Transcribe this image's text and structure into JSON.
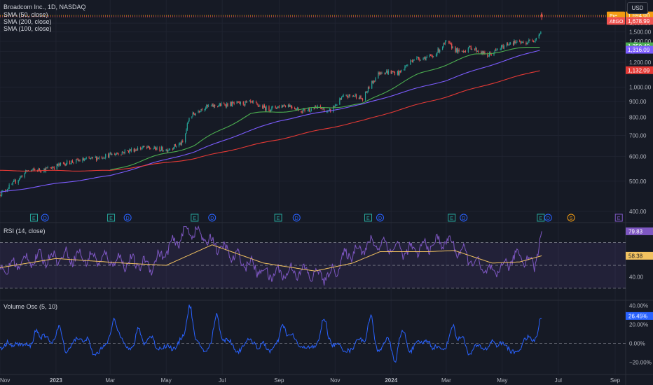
{
  "header": {
    "symbol": "Broadcom Inc., 1D, NASDAQ",
    "legend": [
      "SMA (50, close)",
      "SMA (200, close)",
      "SMA (100, close)"
    ],
    "currency": "USD"
  },
  "colors": {
    "background": "#161a25",
    "grid": "#1f2330",
    "text": "#b2b5be",
    "up": "#26a69a",
    "down": "#ef5350",
    "sma50": "#4caf50",
    "sma100": "#7c5cff",
    "sma200": "#e53935",
    "rsi": "#7e57c2",
    "rsi_ma": "#f2c260",
    "volume_osc": "#2962ff",
    "pre_badge": "#f39c12",
    "after_badge": "#ef5350"
  },
  "chart_data": [
    {
      "type": "candlestick",
      "panel": "price",
      "title": "Broadcom Inc., 1D, NASDAQ",
      "y_scale": "log",
      "ylim": [
        380,
        1850
      ],
      "y_ticks": [
        400,
        500,
        600,
        700,
        800,
        900,
        1000,
        1200,
        1300,
        1400,
        1500,
        1600
      ],
      "y_tick_labels": [
        "400.00",
        "500.00",
        "600.00",
        "700.00",
        "800.00",
        "900.00",
        "1,000.00",
        "1,200.00",
        "1,300.00",
        "1,400.00",
        "1,500.00",
        "1,600.00"
      ],
      "x_tick_labels": [
        "Nov",
        "2023",
        "Mar",
        "May",
        "Jul",
        "Sep",
        "Nov",
        "2024",
        "Mar",
        "May",
        "Jul",
        "Sep"
      ],
      "x_tick_dates": [
        "2022-11-01",
        "2023-01-01",
        "2023-03-01",
        "2023-05-01",
        "2023-07-01",
        "2023-09-01",
        "2023-11-01",
        "2024-01-01",
        "2024-03-01",
        "2024-05-01",
        "2024-07-01",
        "2024-09-01"
      ],
      "close_path": [
        {
          "date": "2022-11-01",
          "value": 455
        },
        {
          "date": "2022-11-15",
          "value": 490
        },
        {
          "date": "2022-12-01",
          "value": 540
        },
        {
          "date": "2022-12-20",
          "value": 545
        },
        {
          "date": "2023-01-15",
          "value": 575
        },
        {
          "date": "2023-02-10",
          "value": 590
        },
        {
          "date": "2023-03-10",
          "value": 615
        },
        {
          "date": "2023-04-05",
          "value": 640
        },
        {
          "date": "2023-05-01",
          "value": 630
        },
        {
          "date": "2023-05-20",
          "value": 665
        },
        {
          "date": "2023-05-26",
          "value": 800
        },
        {
          "date": "2023-06-10",
          "value": 860
        },
        {
          "date": "2023-07-05",
          "value": 880
        },
        {
          "date": "2023-08-01",
          "value": 890
        },
        {
          "date": "2023-08-20",
          "value": 850
        },
        {
          "date": "2023-09-10",
          "value": 880
        },
        {
          "date": "2023-09-25",
          "value": 840
        },
        {
          "date": "2023-10-15",
          "value": 860
        },
        {
          "date": "2023-10-25",
          "value": 830
        },
        {
          "date": "2023-11-10",
          "value": 930
        },
        {
          "date": "2023-11-25",
          "value": 940
        },
        {
          "date": "2023-12-01",
          "value": 910
        },
        {
          "date": "2023-12-08",
          "value": 1000
        },
        {
          "date": "2023-12-20",
          "value": 1120
        },
        {
          "date": "2024-01-10",
          "value": 1110
        },
        {
          "date": "2024-01-25",
          "value": 1230
        },
        {
          "date": "2024-02-15",
          "value": 1250
        },
        {
          "date": "2024-03-01",
          "value": 1390
        },
        {
          "date": "2024-03-15",
          "value": 1290
        },
        {
          "date": "2024-03-28",
          "value": 1340
        },
        {
          "date": "2024-04-15",
          "value": 1260
        },
        {
          "date": "2024-04-25",
          "value": 1310
        },
        {
          "date": "2024-05-10",
          "value": 1390
        },
        {
          "date": "2024-05-25",
          "value": 1380
        },
        {
          "date": "2024-06-05",
          "value": 1420
        },
        {
          "date": "2024-06-12",
          "value": 1500
        }
      ],
      "last_candle": {
        "date": "2024-06-13",
        "value": 1678.99,
        "high": 1735,
        "low": 1640
      },
      "sma": [
        {
          "name": "SMA (50, close)",
          "last": "1,350.40",
          "points": [
            {
              "date": "2023-03-01",
              "value": 540
            },
            {
              "date": "2023-06-01",
              "value": 650
            },
            {
              "date": "2023-08-01",
              "value": 820
            },
            {
              "date": "2023-10-01",
              "value": 850
            },
            {
              "date": "2023-12-01",
              "value": 880
            },
            {
              "date": "2024-02-01",
              "value": 1100
            },
            {
              "date": "2024-04-01",
              "value": 1270
            },
            {
              "date": "2024-06-12",
              "value": 1350
            }
          ]
        },
        {
          "name": "SMA (100, close)",
          "last": "1,316.09",
          "points": [
            {
              "date": "2022-11-01",
              "value": 460
            },
            {
              "date": "2023-03-01",
              "value": 520
            },
            {
              "date": "2023-06-01",
              "value": 620
            },
            {
              "date": "2023-09-01",
              "value": 780
            },
            {
              "date": "2023-12-01",
              "value": 880
            },
            {
              "date": "2024-03-01",
              "value": 1050
            },
            {
              "date": "2024-06-12",
              "value": 1316
            }
          ]
        },
        {
          "name": "SMA (200, close)",
          "last": "1,132.09",
          "points": [
            {
              "date": "2022-11-01",
              "value": 540
            },
            {
              "date": "2023-03-01",
              "value": 540
            },
            {
              "date": "2023-06-01",
              "value": 590
            },
            {
              "date": "2023-09-01",
              "value": 680
            },
            {
              "date": "2023-12-01",
              "value": 780
            },
            {
              "date": "2024-03-01",
              "value": 930
            },
            {
              "date": "2024-06-12",
              "value": 1132
            }
          ]
        }
      ],
      "price_labels": [
        {
          "tag": "Pre",
          "value": "1,694.00",
          "y_value": 1694
        },
        {
          "tag": "AftGO",
          "value": "1,678.99",
          "y_value": 1678.99
        }
      ],
      "events": [
        {
          "letter": "E",
          "date": "2022-12-08"
        },
        {
          "letter": "D",
          "date": "2022-12-20"
        },
        {
          "letter": "E",
          "date": "2023-03-02"
        },
        {
          "letter": "D",
          "date": "2023-03-20"
        },
        {
          "letter": "E",
          "date": "2023-06-01"
        },
        {
          "letter": "D",
          "date": "2023-06-20"
        },
        {
          "letter": "E",
          "date": "2023-08-31"
        },
        {
          "letter": "D",
          "date": "2023-09-20"
        },
        {
          "letter": "E",
          "date": "2023-12-07"
        },
        {
          "letter": "D",
          "date": "2023-12-20"
        },
        {
          "letter": "E",
          "date": "2024-03-07"
        },
        {
          "letter": "D",
          "date": "2024-03-20"
        },
        {
          "letter": "E",
          "date": "2024-06-12"
        },
        {
          "letter": "D",
          "date": "2024-06-20"
        },
        {
          "letter": "S",
          "date": "2024-07-15"
        },
        {
          "letter": "E",
          "date": "2024-09-05"
        }
      ]
    },
    {
      "type": "line",
      "panel": "rsi",
      "title": "RSI (14, close)",
      "ylim": [
        20,
        85
      ],
      "y_ticks": [
        40
      ],
      "y_tick_labels": [
        "40.00"
      ],
      "bands": [
        70,
        50,
        30
      ],
      "last_value": "79.83",
      "ma_last_value": "58.38",
      "anchors": [
        {
          "date": "2022-11-01",
          "value": 45
        },
        {
          "date": "2022-12-01",
          "value": 55
        },
        {
          "date": "2023-01-15",
          "value": 58
        },
        {
          "date": "2023-03-01",
          "value": 55
        },
        {
          "date": "2023-04-15",
          "value": 50
        },
        {
          "date": "2023-05-26",
          "value": 82
        },
        {
          "date": "2023-06-20",
          "value": 70
        },
        {
          "date": "2023-07-20",
          "value": 55
        },
        {
          "date": "2023-08-20",
          "value": 42
        },
        {
          "date": "2023-09-20",
          "value": 45
        },
        {
          "date": "2023-10-25",
          "value": 40
        },
        {
          "date": "2023-11-15",
          "value": 60
        },
        {
          "date": "2023-12-15",
          "value": 70
        },
        {
          "date": "2024-01-20",
          "value": 62
        },
        {
          "date": "2024-03-01",
          "value": 72
        },
        {
          "date": "2024-04-05",
          "value": 50
        },
        {
          "date": "2024-04-20",
          "value": 42
        },
        {
          "date": "2024-05-20",
          "value": 60
        },
        {
          "date": "2024-06-05",
          "value": 50
        },
        {
          "date": "2024-06-13",
          "value": 79.83
        }
      ],
      "ma_anchors": [
        {
          "date": "2022-11-01",
          "value": 48
        },
        {
          "date": "2023-01-01",
          "value": 56
        },
        {
          "date": "2023-03-15",
          "value": 52
        },
        {
          "date": "2023-05-01",
          "value": 50
        },
        {
          "date": "2023-06-20",
          "value": 68
        },
        {
          "date": "2023-08-15",
          "value": 52
        },
        {
          "date": "2023-10-10",
          "value": 45
        },
        {
          "date": "2023-11-20",
          "value": 52
        },
        {
          "date": "2023-12-20",
          "value": 62
        },
        {
          "date": "2024-02-10",
          "value": 62
        },
        {
          "date": "2024-03-10",
          "value": 63
        },
        {
          "date": "2024-04-20",
          "value": 52
        },
        {
          "date": "2024-05-20",
          "value": 53
        },
        {
          "date": "2024-06-13",
          "value": 58.38
        }
      ]
    },
    {
      "type": "line",
      "panel": "volume_osc",
      "title": "Volume Osc (5, 10)",
      "ylim": [
        -28,
        45
      ],
      "y_ticks": [
        40,
        20,
        0,
        -20
      ],
      "y_tick_labels": [
        "40.00%",
        "20.00%",
        "0.00%",
        "−20.00%"
      ],
      "zero_line": 0,
      "last_value": "26.45%",
      "spikes": [
        {
          "date": "2022-12-10",
          "value": 20
        },
        {
          "date": "2023-01-05",
          "value": 18
        },
        {
          "date": "2023-03-05",
          "value": 22
        },
        {
          "date": "2023-04-01",
          "value": 18
        },
        {
          "date": "2023-05-27",
          "value": 38
        },
        {
          "date": "2023-06-25",
          "value": 24
        },
        {
          "date": "2023-09-05",
          "value": 20
        },
        {
          "date": "2023-10-20",
          "value": 18
        },
        {
          "date": "2023-12-10",
          "value": 30
        },
        {
          "date": "2024-01-15",
          "value": 12
        },
        {
          "date": "2024-03-08",
          "value": 22
        },
        {
          "date": "2024-03-25",
          "value": -15
        },
        {
          "date": "2024-04-25",
          "value": -10
        },
        {
          "date": "2024-06-13",
          "value": 26.45
        }
      ],
      "dips": [
        {
          "date": "2022-11-15",
          "value": -12
        },
        {
          "date": "2023-02-10",
          "value": -10
        },
        {
          "date": "2023-04-20",
          "value": -8
        },
        {
          "date": "2023-08-10",
          "value": -12
        },
        {
          "date": "2023-11-20",
          "value": -10
        },
        {
          "date": "2024-01-05",
          "value": -23
        },
        {
          "date": "2024-02-15",
          "value": -12
        },
        {
          "date": "2024-05-10",
          "value": -8
        }
      ]
    }
  ]
}
